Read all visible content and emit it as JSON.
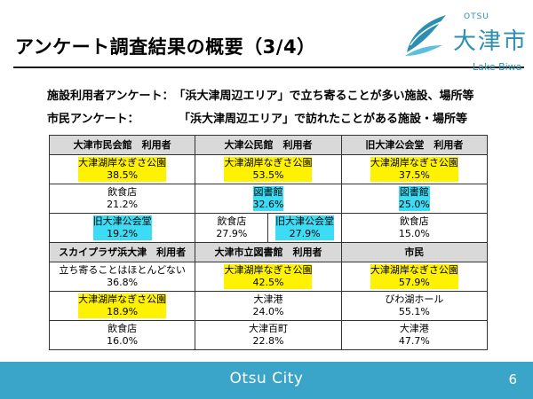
{
  "title": "アンケート調査結果の概要（3/4）",
  "logo": {
    "small": "OTSU",
    "name": "大津市",
    "sub": "Lake Biwa",
    "accent": "#2a8fb0"
  },
  "subtitles": [
    {
      "label": "施設利用者アンケート：",
      "text": "「浜大津周辺エリア」で立ち寄ることが多い施設、場所等"
    },
    {
      "label": "市民アンケート：",
      "text": "「浜大津周辺エリア」で訪れたことがある施設・場所等"
    }
  ],
  "colors": {
    "highlight_yellow": "#fff200",
    "highlight_cyan": "#3ddcf5",
    "header_gray": "#d9d9d9",
    "footer": "#3aa5c8"
  },
  "table": {
    "group1": {
      "headers": [
        "大津市民会館　利用者",
        "大津公民館　利用者",
        "旧大津公会堂　利用者"
      ],
      "rows": [
        [
          {
            "name": "大津湖岸なぎさ公園",
            "pct": "38.5%"
          },
          {
            "name": "大津湖岸なぎさ公園",
            "pct": "53.5%"
          },
          {
            "name": "大津湖岸なぎさ公園",
            "pct": "37.5%"
          }
        ],
        [
          {
            "name": "飲食店",
            "pct": "21.2%"
          },
          {
            "name": "図書館",
            "pct": "32.6%"
          },
          {
            "name": "図書館",
            "pct": "25.0%"
          }
        ],
        [
          {
            "name": "旧大津公会堂",
            "pct": "19.2%"
          },
          {
            "name": "飲食店",
            "pct": "27.9%"
          },
          {
            "name": "旧大津公会堂",
            "pct": "27.9%"
          },
          {
            "name": "飲食店",
            "pct": "15.0%"
          }
        ]
      ]
    },
    "group2": {
      "headers": [
        "スカイプラザ浜大津　利用者",
        "大津市立図書館　利用者",
        "市民"
      ],
      "rows": [
        [
          {
            "name": "立ち寄ることはほとんどない",
            "pct": "36.8%"
          },
          {
            "name": "大津湖岸なぎさ公園",
            "pct": "42.5%"
          },
          {
            "name": "大津湖岸なぎさ公園",
            "pct": "57.9%"
          }
        ],
        [
          {
            "name": "大津湖岸なぎさ公園",
            "pct": "18.9%"
          },
          {
            "name": "大津港",
            "pct": "24.0%"
          },
          {
            "name": "びわ湖ホール",
            "pct": "55.1%"
          }
        ],
        [
          {
            "name": "飲食店",
            "pct": "16.0%"
          },
          {
            "name": "大津百町",
            "pct": "22.8%"
          },
          {
            "name": "大津港",
            "pct": "47.7%"
          }
        ]
      ]
    }
  },
  "footer": {
    "text": "Otsu City",
    "page": "6"
  }
}
